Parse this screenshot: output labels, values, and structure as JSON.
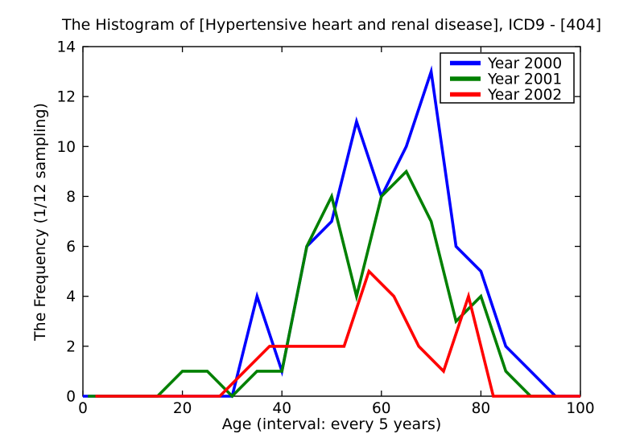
{
  "chart_data": {
    "type": "line",
    "title": "The Histogram of [Hypertensive heart and renal disease], ICD9 - [404]",
    "xlabel": "Age (interval: every 5 years)",
    "ylabel": "The Frequency (1/12 sampling)",
    "xlim": [
      0,
      100
    ],
    "ylim": [
      0,
      14
    ],
    "xticks": [
      0,
      20,
      40,
      60,
      80,
      100
    ],
    "yticks": [
      0,
      2,
      4,
      6,
      8,
      10,
      12,
      14
    ],
    "grid": false,
    "legend_location": "upper right",
    "series": [
      {
        "name": "Year 2000",
        "color": "#0000ff",
        "points": [
          [
            0,
            0
          ],
          [
            5,
            0
          ],
          [
            10,
            0
          ],
          [
            15,
            0
          ],
          [
            20,
            0
          ],
          [
            25,
            0
          ],
          [
            30,
            0
          ],
          [
            35,
            4
          ],
          [
            40,
            1
          ],
          [
            45,
            6
          ],
          [
            50,
            7
          ],
          [
            55,
            11
          ],
          [
            60,
            8
          ],
          [
            65,
            10
          ],
          [
            70,
            13
          ],
          [
            75,
            6
          ],
          [
            80,
            5
          ],
          [
            85,
            2
          ],
          [
            90,
            1
          ],
          [
            95,
            0
          ],
          [
            100,
            0
          ]
        ]
      },
      {
        "name": "Year 2001",
        "color": "#008000",
        "points": [
          [
            1,
            0
          ],
          [
            5,
            0
          ],
          [
            10,
            0
          ],
          [
            15,
            0
          ],
          [
            20,
            1
          ],
          [
            25,
            1
          ],
          [
            30,
            0
          ],
          [
            35,
            1
          ],
          [
            40,
            1
          ],
          [
            45,
            6
          ],
          [
            50,
            8
          ],
          [
            55,
            4
          ],
          [
            60,
            8
          ],
          [
            65,
            9
          ],
          [
            70,
            7
          ],
          [
            75,
            3
          ],
          [
            80,
            4
          ],
          [
            85,
            1
          ],
          [
            90,
            0
          ],
          [
            95,
            0
          ]
        ]
      },
      {
        "name": "Year 2002",
        "color": "#ff0000",
        "points": [
          [
            2.5,
            0
          ],
          [
            7.5,
            0
          ],
          [
            12.5,
            0
          ],
          [
            17.5,
            0
          ],
          [
            22.5,
            0
          ],
          [
            27.5,
            0
          ],
          [
            32.5,
            1
          ],
          [
            37.5,
            2
          ],
          [
            42.5,
            2
          ],
          [
            47.5,
            2
          ],
          [
            52.5,
            2
          ],
          [
            57.5,
            5
          ],
          [
            62.5,
            4
          ],
          [
            67.5,
            2
          ],
          [
            72.5,
            1
          ],
          [
            77.5,
            4
          ],
          [
            82.5,
            0
          ],
          [
            87.5,
            0
          ],
          [
            92.5,
            0
          ],
          [
            97.5,
            0
          ],
          [
            100,
            0
          ]
        ]
      }
    ]
  }
}
